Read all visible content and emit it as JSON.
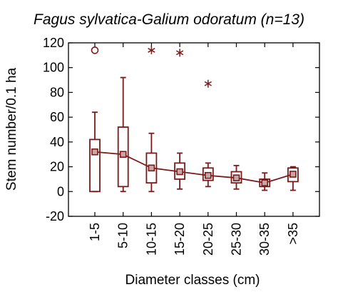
{
  "chart_data": {
    "type": "box",
    "title": "Fagus sylvatica-Galium odoratum (n=13)",
    "xlabel": "Diameter classes (cm)",
    "ylabel": "Stem number/0.1 ha",
    "ylim": [
      -20,
      120
    ],
    "y_ticks": [
      -20,
      0,
      20,
      40,
      60,
      80,
      100,
      120
    ],
    "grid": false,
    "color": "#7a1a1a",
    "categories": [
      "1-5",
      "5-10",
      "10-15",
      "15-20",
      "20-25",
      "25-30",
      "30-35",
      ">35"
    ],
    "series": [
      {
        "mean": [
          32,
          30,
          19,
          16,
          13,
          11,
          7,
          14
        ],
        "median": [
          32,
          30,
          19,
          16,
          13,
          11,
          7,
          14
        ],
        "q1": [
          0,
          4,
          7,
          10,
          9,
          7,
          4,
          8
        ],
        "q3": [
          42,
          52,
          31,
          23,
          19,
          16,
          10,
          19
        ],
        "whisker_low": [
          0,
          0,
          0,
          2,
          4,
          2,
          1,
          1
        ],
        "whisker_high": [
          64,
          92,
          47,
          31,
          23,
          21,
          15,
          20
        ],
        "outliers": [
          {
            "category": "1-5",
            "value": 114,
            "marker": "circle"
          }
        ],
        "extremes": [
          {
            "category": "10-15",
            "value": 114,
            "marker": "asterisk"
          },
          {
            "category": "15-20",
            "value": 112,
            "marker": "asterisk"
          },
          {
            "category": "20-25",
            "value": 87,
            "marker": "asterisk"
          }
        ]
      }
    ]
  }
}
